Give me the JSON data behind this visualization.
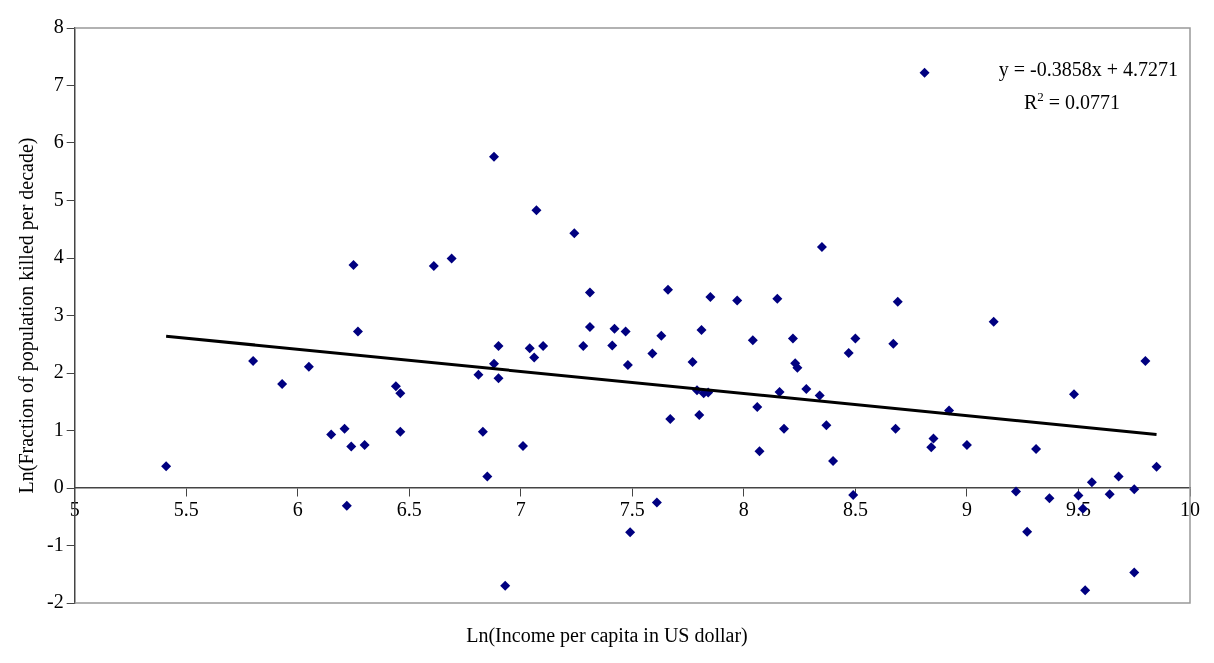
{
  "chart_data": {
    "type": "scatter",
    "xlabel": "Ln(Income per capita in US dollar)",
    "ylabel": "Ln(Fraction of population killed per decade)",
    "xlim": [
      5,
      10
    ],
    "xticks": [
      5,
      5.5,
      6,
      6.5,
      7,
      7.5,
      8,
      8.5,
      9,
      9.5,
      10
    ],
    "ylim": [
      -2,
      8
    ],
    "yticks": [
      -2,
      -1,
      0,
      1,
      2,
      3,
      4,
      5,
      6,
      7,
      8
    ],
    "grid": false,
    "annotations": [
      "y = -0.3858x + 4.7271",
      "R$^{2}$ = 0.0771"
    ],
    "series": [
      {
        "marker": "diamond",
        "color": "#000080",
        "x": [
          5.41,
          5.8,
          5.93,
          6.05,
          6.15,
          6.21,
          6.22,
          6.24,
          6.25,
          6.27,
          6.3,
          6.44,
          6.46,
          6.46,
          6.61,
          6.69,
          6.81,
          6.83,
          6.85,
          6.88,
          6.88,
          6.9,
          6.9,
          6.93,
          7.01,
          7.04,
          7.06,
          7.07,
          7.1,
          7.24,
          7.28,
          7.31,
          7.31,
          7.41,
          7.42,
          7.47,
          7.48,
          7.49,
          7.59,
          7.61,
          7.63,
          7.66,
          7.67,
          7.77,
          7.79,
          7.8,
          7.81,
          7.82,
          7.84,
          7.85,
          7.97,
          8.04,
          8.06,
          8.07,
          8.15,
          8.16,
          8.18,
          8.22,
          8.23,
          8.24,
          8.28,
          8.34,
          8.35,
          8.37,
          8.4,
          8.47,
          8.49,
          8.5,
          8.67,
          8.68,
          8.69,
          8.81,
          8.84,
          8.85,
          8.92,
          9.0,
          9.12,
          9.22,
          9.27,
          9.31,
          9.37,
          9.48,
          9.5,
          9.52,
          9.53,
          9.56,
          9.64,
          9.68,
          9.75,
          9.75,
          9.8,
          9.85
        ],
        "values": [
          0.38,
          2.21,
          1.81,
          2.11,
          0.93,
          1.03,
          -0.31,
          0.72,
          3.88,
          2.72,
          0.75,
          1.77,
          1.65,
          0.98,
          3.86,
          3.99,
          1.97,
          0.98,
          0.2,
          2.16,
          5.76,
          1.91,
          2.47,
          -1.7,
          0.73,
          2.43,
          2.27,
          4.83,
          2.47,
          4.43,
          2.47,
          2.8,
          3.4,
          2.48,
          2.77,
          2.72,
          2.14,
          -0.77,
          2.34,
          -0.25,
          2.65,
          3.45,
          1.2,
          2.19,
          1.7,
          1.27,
          2.75,
          1.65,
          1.66,
          3.32,
          3.26,
          2.57,
          1.41,
          0.64,
          3.29,
          1.67,
          1.03,
          2.6,
          2.17,
          2.09,
          1.72,
          1.61,
          4.19,
          1.09,
          0.47,
          2.35,
          -0.12,
          2.6,
          2.51,
          1.03,
          3.24,
          7.22,
          0.71,
          0.86,
          1.35,
          0.75,
          2.89,
          -0.06,
          -0.76,
          0.68,
          -0.18,
          1.63,
          -0.13,
          -0.36,
          -1.78,
          0.1,
          -0.11,
          0.2,
          -0.02,
          -1.47,
          2.21,
          0.37
        ]
      },
      {
        "type": "line",
        "marker": "none",
        "color": "#000000",
        "x": [
          5.41,
          9.85
        ],
        "values": [
          2.64,
          0.93
        ]
      }
    ]
  }
}
